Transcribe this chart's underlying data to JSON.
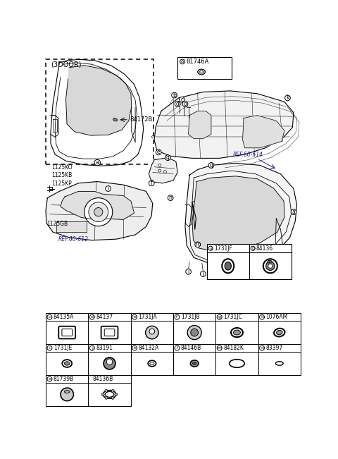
{
  "bg_color": "#ffffff",
  "fig_width": 4.8,
  "fig_height": 6.51,
  "dpi": 100,
  "three_door_label": "(3DOOR)",
  "parts_ab": [
    {
      "letter": "a",
      "code": "1731JF"
    },
    {
      "letter": "b",
      "code": "84136"
    }
  ],
  "parts_row1": [
    {
      "letter": "c",
      "code": "84135A"
    },
    {
      "letter": "d",
      "code": "84137"
    },
    {
      "letter": "e",
      "code": "1731JA"
    },
    {
      "letter": "f",
      "code": "1731JB"
    },
    {
      "letter": "g",
      "code": "1731JC"
    },
    {
      "letter": "h",
      "code": "1076AM"
    }
  ],
  "parts_row2": [
    {
      "letter": "i",
      "code": "1731JE"
    },
    {
      "letter": "j",
      "code": "83191"
    },
    {
      "letter": "k",
      "code": "84132A"
    },
    {
      "letter": "l",
      "code": "84146B"
    },
    {
      "letter": "m",
      "code": "84182K"
    },
    {
      "letter": "n",
      "code": "83397"
    }
  ],
  "parts_row3": [
    {
      "letter": "o",
      "code": "81739B"
    },
    {
      "letter": "",
      "code": "84136B"
    }
  ],
  "label_84172B": "84172B",
  "label_1125": "1125KO\n1125KB\n1125KP",
  "label_1125GB": "1125GB",
  "label_ref612": "REF.60-612",
  "label_ref614": "REF.60-614",
  "label_81746A": "81746A"
}
